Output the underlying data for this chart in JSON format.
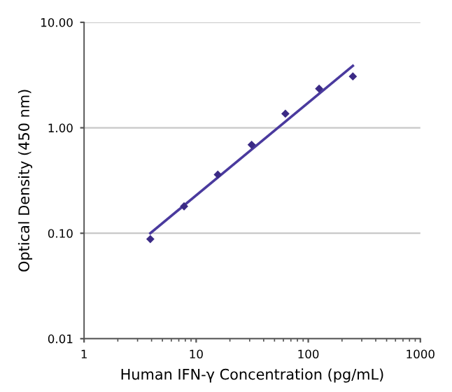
{
  "chart_data": {
    "type": "scatter",
    "xlabel": "Human IFN-γ Concentration (pg/mL)",
    "ylabel": "Optical Density (450 nm)",
    "log": "xy",
    "grid": "y",
    "marker": "diamond",
    "series": [
      {
        "color": "#3b2a85",
        "x": [
          3.9,
          7.8,
          15.6,
          31.25,
          62.5,
          125,
          250
        ],
        "values": [
          0.088,
          0.18,
          0.36,
          0.69,
          1.36,
          2.35,
          3.07
        ]
      },
      {
        "type": "line",
        "color": "#4a3a9e",
        "marker": "none",
        "line_style": "solid",
        "x": [
          3.9,
          250
        ],
        "values": [
          0.1,
          3.87
        ]
      }
    ],
    "xlim": [
      1,
      1000
    ],
    "xticks": [
      1,
      10,
      100,
      1000
    ],
    "ylim": [
      0.01,
      10
    ],
    "yticks": [
      {
        "value": 0.01,
        "label": "0.01"
      },
      {
        "value": 0.1,
        "label": "0.10"
      },
      {
        "value": 1,
        "label": "1.00"
      },
      {
        "value": 10,
        "label": "10.00"
      }
    ]
  }
}
